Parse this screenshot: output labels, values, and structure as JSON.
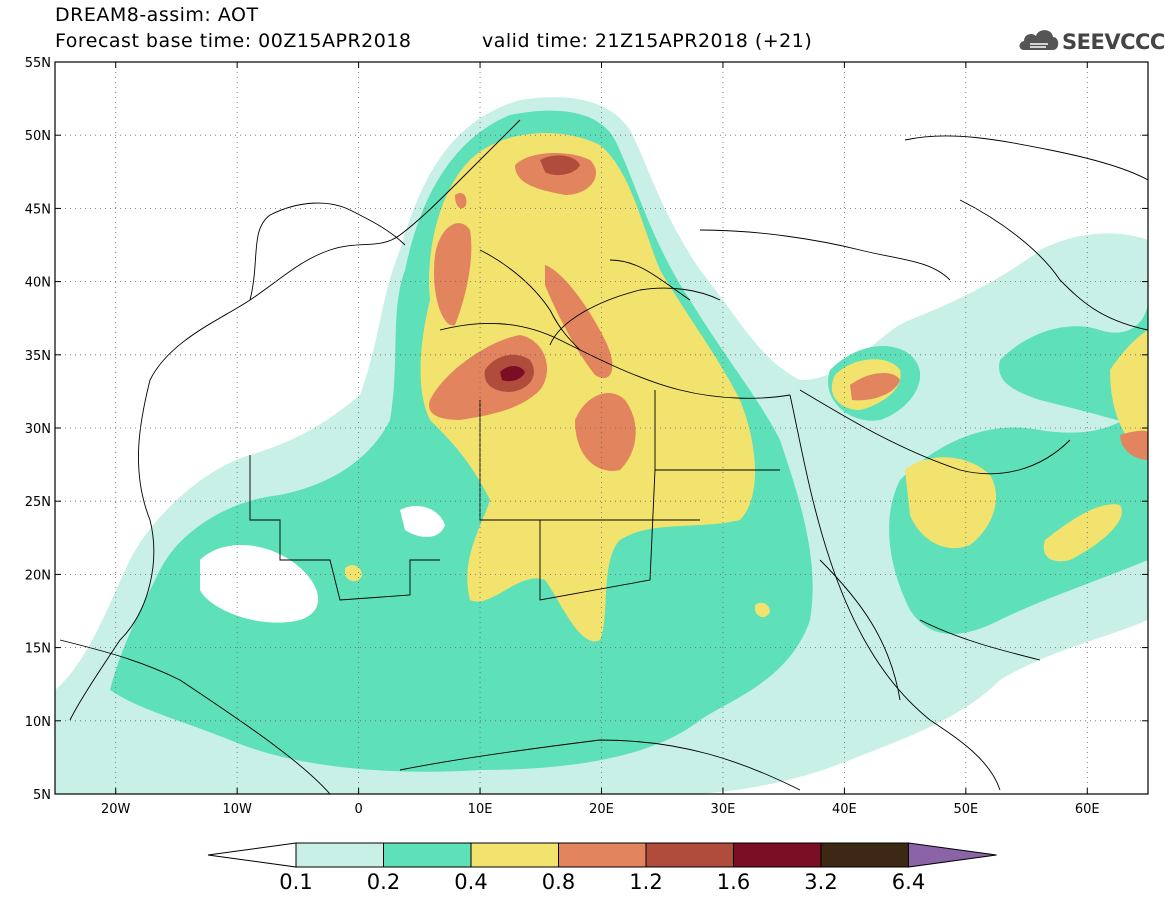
{
  "header": {
    "title": "DREAM8-assim: AOT",
    "base_time": "Forecast base time: 00Z15APR2018",
    "valid_time": "valid time: 21Z15APR2018 (+21)",
    "logo_text": "SEEVCCC"
  },
  "map": {
    "lat_labels": [
      "55N",
      "50N",
      "45N",
      "40N",
      "35N",
      "30N",
      "25N",
      "20N",
      "15N",
      "10N",
      "5N"
    ],
    "lon_labels": [
      "20W",
      "10W",
      "0",
      "10E",
      "20E",
      "30E",
      "40E",
      "50E",
      "60E"
    ],
    "lat_values": [
      55,
      50,
      45,
      40,
      35,
      30,
      25,
      20,
      15,
      10,
      5
    ],
    "lon_values": [
      -20,
      -10,
      0,
      10,
      20,
      30,
      40,
      50,
      60
    ],
    "extent": {
      "lon_min": -25,
      "lon_max": 65,
      "lat_min": 5,
      "lat_max": 55
    },
    "grid": "dotted",
    "colors": {
      "level_0_1": "#c8f0e6",
      "level_0_2": "#5ee0b8",
      "level_0_4": "#f2e26e",
      "level_0_8": "#e2855f",
      "level_1_2": "#b04c3c",
      "level_1_6": "#7a0e24",
      "level_3_2": "#3c2814",
      "level_6_4": "#8a64a6"
    }
  },
  "colorbar": {
    "labels": [
      "0.1",
      "0.2",
      "0.4",
      "0.8",
      "1.2",
      "1.6",
      "3.2",
      "6.4"
    ],
    "colors": [
      "#c8f0e6",
      "#5ee0b8",
      "#f2e26e",
      "#e2855f",
      "#b04c3c",
      "#7a0e24",
      "#3c2814"
    ],
    "over_color": "#8a64a6",
    "under_color": "#ffffff"
  }
}
